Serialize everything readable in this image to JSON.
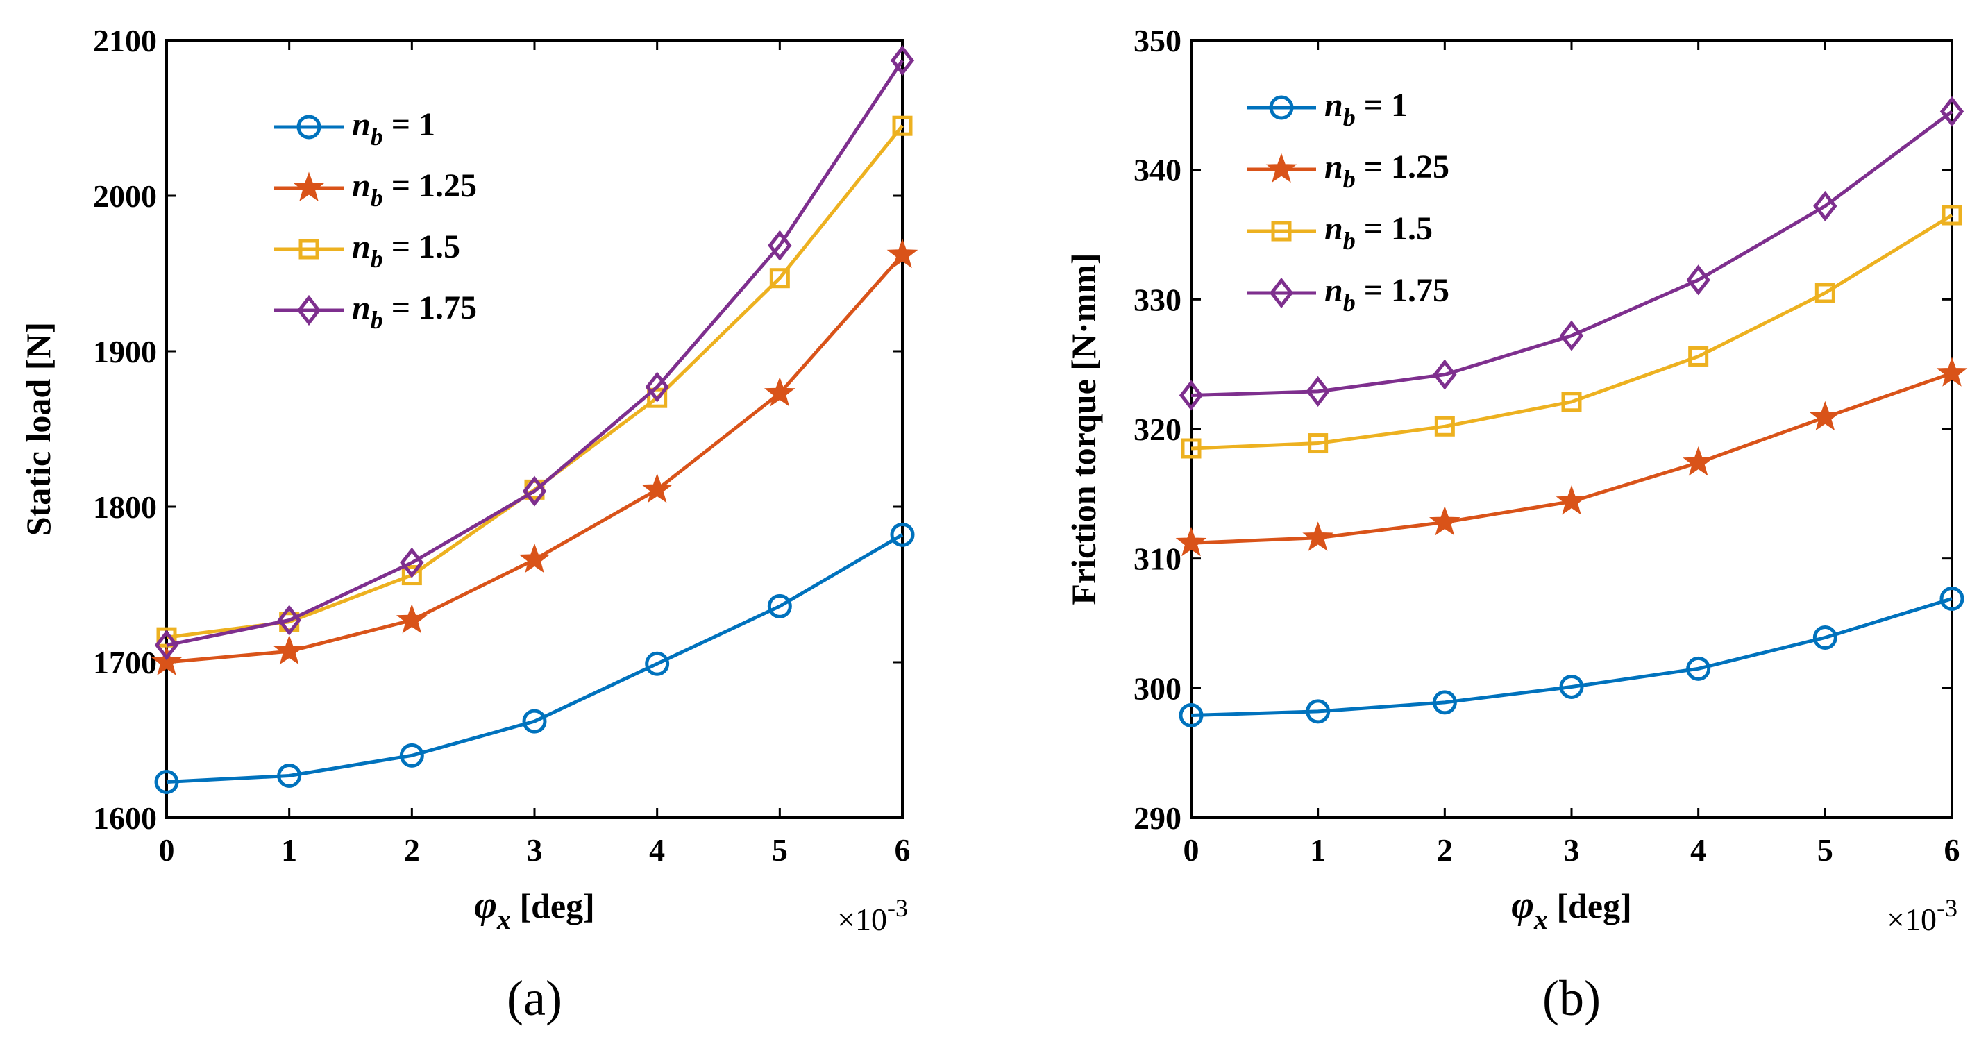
{
  "chart_data": [
    {
      "type": "line",
      "caption": "(a)",
      "ylabel": "Static load [N]",
      "xlabel": {
        "symbol": "φ",
        "subscript": "x",
        "unit": " [deg]"
      },
      "x_multiplier": {
        "base": "×10",
        "exponent": "-3"
      },
      "x": [
        0,
        1,
        2,
        3,
        4,
        5,
        6
      ],
      "xticks": [
        "0",
        "1",
        "2",
        "3",
        "4",
        "5",
        "6"
      ],
      "ylim": [
        1600,
        2100
      ],
      "yticks": [
        "1600",
        "1700",
        "1800",
        "1900",
        "2000",
        "2100"
      ],
      "legend_position": "top-left",
      "series": [
        {
          "name": "n_b = 1",
          "legend": {
            "sym": "n",
            "sub": "b",
            "rest": " = 1"
          },
          "color": "#0072BD",
          "marker": "circle",
          "values": [
            1623,
            1627,
            1640,
            1662,
            1699,
            1736,
            1782
          ]
        },
        {
          "name": "n_b = 1.25",
          "legend": {
            "sym": "n",
            "sub": "b",
            "rest": " = 1.25"
          },
          "color": "#D95319",
          "marker": "star",
          "values": [
            1700,
            1707,
            1727,
            1766,
            1811,
            1873,
            1962
          ]
        },
        {
          "name": "n_b = 1.5",
          "legend": {
            "sym": "n",
            "sub": "b",
            "rest": " = 1.5"
          },
          "color": "#EDB120",
          "marker": "square",
          "values": [
            1716,
            1726,
            1756,
            1811,
            1870,
            1947,
            2045
          ]
        },
        {
          "name": "n_b = 1.75",
          "legend": {
            "sym": "n",
            "sub": "b",
            "rest": " = 1.75"
          },
          "color": "#7E2F8E",
          "marker": "diamond",
          "values": [
            1711,
            1727,
            1764,
            1810,
            1877,
            1968,
            2087
          ]
        }
      ]
    },
    {
      "type": "line",
      "caption": "(b)",
      "ylabel": "Friction torque [N·mm]",
      "xlabel": {
        "symbol": "φ",
        "subscript": "x",
        "unit": " [deg]"
      },
      "x_multiplier": {
        "base": "×10",
        "exponent": "-3"
      },
      "x": [
        0,
        1,
        2,
        3,
        4,
        5,
        6
      ],
      "xticks": [
        "0",
        "1",
        "2",
        "3",
        "4",
        "5",
        "6"
      ],
      "ylim": [
        290,
        350
      ],
      "yticks": [
        "290",
        "300",
        "310",
        "320",
        "330",
        "340",
        "350"
      ],
      "legend_position": "top-left",
      "series": [
        {
          "name": "n_b = 1",
          "legend": {
            "sym": "n",
            "sub": "b",
            "rest": " = 1"
          },
          "color": "#0072BD",
          "marker": "circle",
          "values": [
            297.9,
            298.2,
            298.9,
            300.1,
            301.5,
            303.9,
            306.9
          ]
        },
        {
          "name": "n_b = 1.25",
          "legend": {
            "sym": "n",
            "sub": "b",
            "rest": " = 1.25"
          },
          "color": "#D95319",
          "marker": "star",
          "values": [
            311.2,
            311.6,
            312.8,
            314.4,
            317.4,
            320.9,
            324.3
          ]
        },
        {
          "name": "n_b = 1.5",
          "legend": {
            "sym": "n",
            "sub": "b",
            "rest": " = 1.5"
          },
          "color": "#EDB120",
          "marker": "square",
          "values": [
            318.5,
            318.9,
            320.2,
            322.1,
            325.6,
            330.5,
            336.5
          ]
        },
        {
          "name": "n_b = 1.75",
          "legend": {
            "sym": "n",
            "sub": "b",
            "rest": " = 1.75"
          },
          "color": "#7E2F8E",
          "marker": "diamond",
          "values": [
            322.6,
            322.9,
            324.2,
            327.2,
            331.5,
            337.2,
            344.5
          ]
        }
      ]
    }
  ]
}
